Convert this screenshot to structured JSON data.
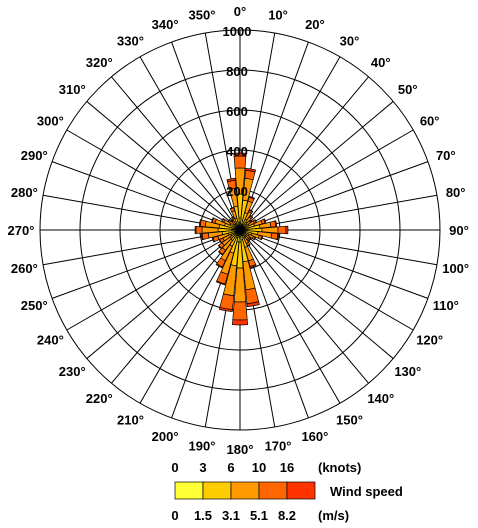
{
  "chart_data": {
    "type": "windrose",
    "title": "",
    "sectors_deg": [
      0,
      10,
      20,
      30,
      40,
      50,
      60,
      70,
      80,
      90,
      100,
      110,
      120,
      130,
      140,
      150,
      160,
      170,
      180,
      190,
      200,
      210,
      220,
      230,
      240,
      250,
      260,
      270,
      280,
      290,
      300,
      310,
      320,
      330,
      340,
      350
    ],
    "direction_labels": [
      "0°",
      "10°",
      "20°",
      "30°",
      "40°",
      "50°",
      "60°",
      "70°",
      "80°",
      "90°",
      "100°",
      "110°",
      "120°",
      "130°",
      "140°",
      "150°",
      "160°",
      "170°",
      "180°",
      "190°",
      "200°",
      "210°",
      "220°",
      "230°",
      "240°",
      "250°",
      "260°",
      "270°",
      "280°",
      "290°",
      "300°",
      "310°",
      "320°",
      "330°",
      "340°",
      "350°"
    ],
    "radial_ticks": [
      "200",
      "400",
      "600",
      "800",
      "1000"
    ],
    "radial_tick_values": [
      200,
      400,
      600,
      800,
      1000
    ],
    "rmax": 1000,
    "grid": true,
    "speed_bins": [
      {
        "color": "#ffff33"
      },
      {
        "color": "#ffcc00"
      },
      {
        "color": "#ff9900"
      },
      {
        "color": "#ff6600"
      },
      {
        "color": "#ff3300"
      }
    ],
    "series_values": [
      [
        60,
        50,
        30,
        20,
        20,
        15,
        20,
        30,
        40,
        40,
        30,
        20,
        20,
        15,
        15,
        15,
        30,
        50,
        60,
        60,
        40,
        30,
        20,
        20,
        15,
        20,
        30,
        40,
        40,
        30,
        20,
        15,
        15,
        15,
        20,
        40
      ],
      [
        120,
        100,
        60,
        40,
        30,
        25,
        30,
        45,
        60,
        70,
        60,
        40,
        30,
        25,
        25,
        30,
        60,
        110,
        130,
        120,
        80,
        60,
        45,
        40,
        35,
        40,
        60,
        70,
        65,
        50,
        35,
        25,
        20,
        25,
        40,
        80
      ],
      [
        130,
        110,
        60,
        40,
        30,
        25,
        30,
        40,
        55,
        80,
        70,
        40,
        25,
        20,
        20,
        30,
        70,
        140,
        170,
        150,
        110,
        80,
        60,
        50,
        45,
        55,
        70,
        80,
        70,
        50,
        35,
        25,
        20,
        25,
        40,
        90
      ],
      [
        60,
        40,
        20,
        10,
        8,
        6,
        10,
        15,
        25,
        40,
        30,
        15,
        10,
        8,
        8,
        12,
        30,
        70,
        90,
        70,
        50,
        35,
        25,
        20,
        18,
        25,
        30,
        30,
        25,
        15,
        10,
        8,
        6,
        8,
        15,
        40
      ],
      [
        15,
        10,
        5,
        3,
        2,
        2,
        2,
        5,
        5,
        10,
        5,
        3,
        2,
        2,
        2,
        3,
        5,
        15,
        25,
        10,
        5,
        5,
        3,
        3,
        2,
        5,
        5,
        5,
        5,
        3,
        2,
        2,
        1,
        2,
        3,
        10
      ]
    ]
  },
  "legend": {
    "knots_ticks": [
      "0",
      "3",
      "6",
      "10",
      "16"
    ],
    "knots_unit": "(knots)",
    "ms_ticks": [
      "0",
      "1.5",
      "3.1",
      "5.1",
      "8.2"
    ],
    "ms_unit": "(m/s)",
    "label": "Wind speed"
  }
}
